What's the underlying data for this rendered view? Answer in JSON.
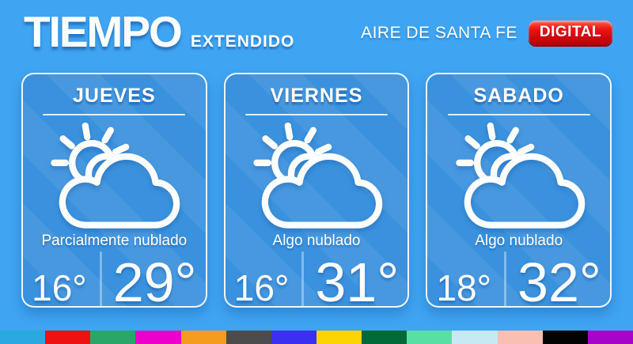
{
  "header": {
    "logo_main": "TIEMPO",
    "logo_sub": "EXTENDIDO",
    "brand": "AIRE DE SANTA FE",
    "badge": "DIGITAL"
  },
  "cards": [
    {
      "day": "JUEVES",
      "condition": "Parcialmente nublado",
      "min": "16°",
      "max": "29°",
      "icon": "partly-cloudy"
    },
    {
      "day": "VIERNES",
      "condition": "Algo nublado",
      "min": "16°",
      "max": "31°",
      "icon": "partly-cloudy"
    },
    {
      "day": "SABADO",
      "condition": "Algo nublado",
      "min": "18°",
      "max": "32°",
      "icon": "partly-cloudy"
    }
  ],
  "colors": {
    "background": "#3fa4f2",
    "card": "#3a91dd",
    "badge_red": "#d20510",
    "text": "#ffffff"
  },
  "footer_palette": [
    "#29a9e0",
    "#ee1111",
    "#2aa768",
    "#ee00cc",
    "#f59b1e",
    "#4c4c4c",
    "#3b2ff0",
    "#fcd303",
    "#026a39",
    "#58e0a4",
    "#c7e9f4",
    "#f8bfb2",
    "#030303",
    "#a704ca"
  ]
}
